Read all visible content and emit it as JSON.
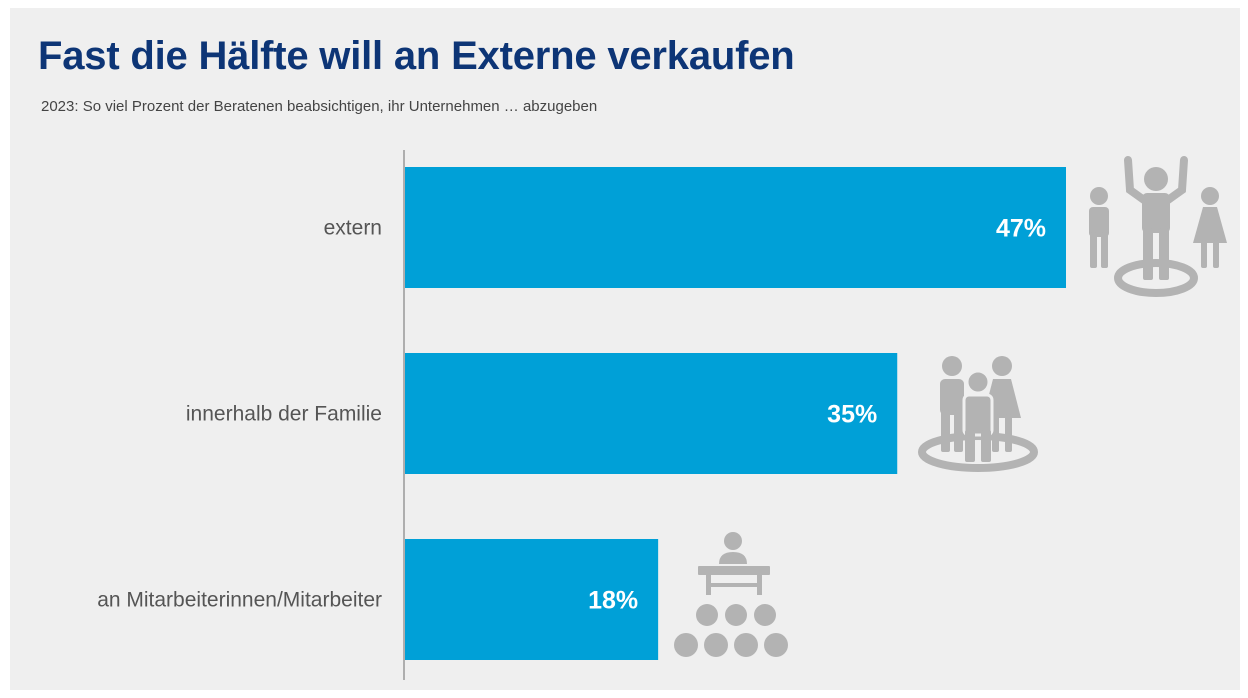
{
  "header": {
    "title": "Fast die Hälfte will an Externe verkaufen",
    "subtitle": "2023: So viel Prozent der Beratenen beabsichtigen, ihr Unternehmen … abzugeben"
  },
  "colors": {
    "bar": "#00a0d7",
    "icon": "#b3b3b3",
    "title": "#0d3576"
  },
  "icons": [
    "people-celebrating-icon",
    "family-group-icon",
    "presenter-audience-icon"
  ],
  "chart_data": {
    "type": "bar",
    "orientation": "horizontal",
    "categories": [
      "extern",
      "innerhalb der Familie",
      "an Mitarbeiterinnen/Mitarbeiter"
    ],
    "values": [
      47,
      35,
      18
    ],
    "value_labels": [
      "47%",
      "35%",
      "18%"
    ],
    "title": "Fast die Hälfte will an Externe verkaufen",
    "subtitle": "2023: So viel Prozent der Beratenen beabsichtigen, ihr Unternehmen … abzugeben",
    "xlim": [
      0,
      47
    ],
    "grid": false,
    "legend": "none"
  }
}
